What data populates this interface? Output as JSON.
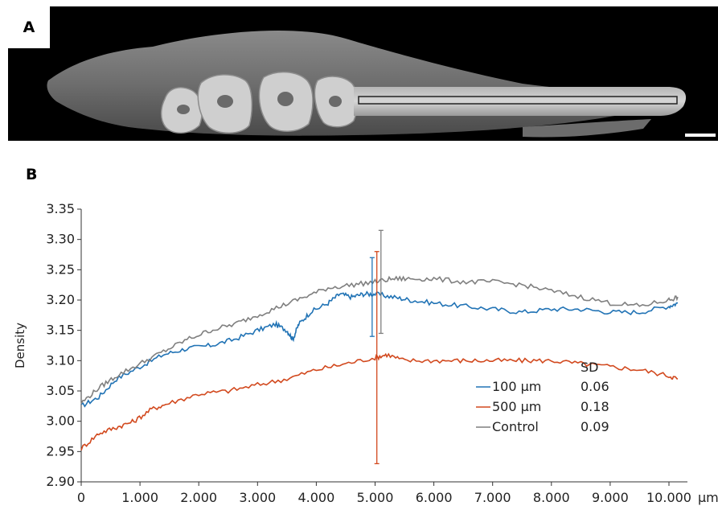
{
  "panels": {
    "a_label": "A",
    "b_label": "B"
  },
  "chart_data": {
    "type": "line",
    "xlabel": "μm",
    "ylabel": "Density",
    "xlim": [
      0,
      11000
    ],
    "ylim": [
      2.9,
      3.35
    ],
    "x_ticks": [
      "0",
      "1.000",
      "2.000",
      "3.000",
      "4.000",
      "5.000",
      "6.000",
      "7.000",
      "8.000",
      "9.000",
      "10.000"
    ],
    "y_ticks": [
      "2.90",
      "2.95",
      "3.00",
      "3.05",
      "3.10",
      "3.15",
      "3.20",
      "3.25",
      "3.30",
      "3.35"
    ],
    "legend_header": "SD",
    "legend_position": "bottom-right",
    "series": [
      {
        "name": "100 μm",
        "sd": "0.06",
        "color": "#2173b5",
        "x": [
          0,
          300,
          600,
          1000,
          1400,
          1800,
          2200,
          2600,
          3000,
          3300,
          3500,
          3600,
          3700,
          3900,
          4200,
          4400,
          4600,
          4800,
          5000,
          5300,
          5600,
          6000,
          6500,
          7000,
          7500,
          8000,
          8500,
          9000,
          9500,
          10000,
          10150
        ],
        "y": [
          3.025,
          3.04,
          3.07,
          3.09,
          3.11,
          3.12,
          3.125,
          3.135,
          3.15,
          3.16,
          3.15,
          3.135,
          3.16,
          3.18,
          3.195,
          3.21,
          3.205,
          3.21,
          3.21,
          3.205,
          3.2,
          3.195,
          3.19,
          3.185,
          3.18,
          3.185,
          3.185,
          3.18,
          3.18,
          3.19,
          3.195
        ],
        "error_bar": {
          "x": 4950,
          "low": 3.14,
          "high": 3.27
        }
      },
      {
        "name": "500 μm",
        "sd": "0.18",
        "color": "#d2491e",
        "x": [
          0,
          300,
          600,
          900,
          1200,
          1500,
          2000,
          2500,
          3000,
          3500,
          4000,
          4500,
          5000,
          5200,
          5500,
          6000,
          6500,
          7000,
          7500,
          8000,
          8500,
          9000,
          9500,
          10000,
          10150
        ],
        "y": [
          2.955,
          2.98,
          2.99,
          3.0,
          3.02,
          3.03,
          3.045,
          3.05,
          3.06,
          3.07,
          3.085,
          3.095,
          3.105,
          3.11,
          3.1,
          3.1,
          3.1,
          3.1,
          3.1,
          3.1,
          3.095,
          3.09,
          3.085,
          3.075,
          3.07
        ],
        "error_bar": {
          "x": 5030,
          "low": 2.93,
          "high": 3.28
        }
      },
      {
        "name": "Control",
        "sd": "0.09",
        "color": "#7f7f7f",
        "x": [
          0,
          300,
          600,
          1000,
          1400,
          1800,
          2200,
          2600,
          3000,
          3400,
          3800,
          4200,
          4600,
          5000,
          5300,
          5600,
          6000,
          6500,
          7000,
          7500,
          8000,
          8500,
          9000,
          9500,
          10000,
          10150
        ],
        "y": [
          3.03,
          3.055,
          3.075,
          3.095,
          3.115,
          3.135,
          3.15,
          3.16,
          3.175,
          3.19,
          3.205,
          3.22,
          3.225,
          3.23,
          3.235,
          3.235,
          3.235,
          3.23,
          3.23,
          3.225,
          3.215,
          3.205,
          3.195,
          3.19,
          3.2,
          3.205
        ],
        "error_bar": {
          "x": 5100,
          "low": 3.145,
          "high": 3.315
        }
      }
    ]
  }
}
